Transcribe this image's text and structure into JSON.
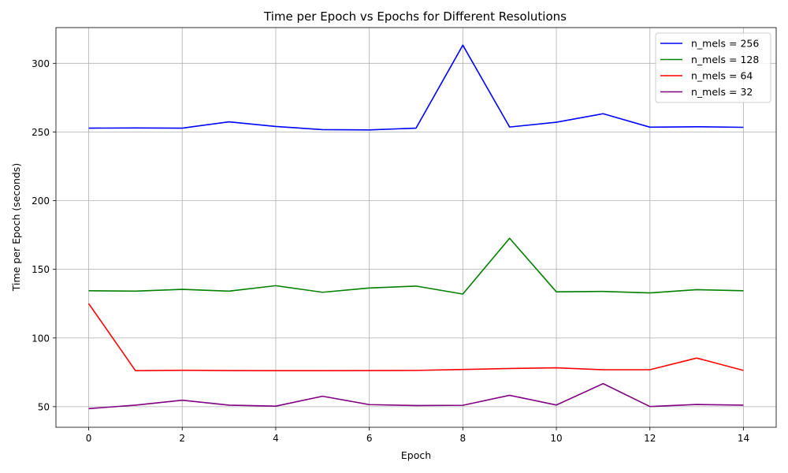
{
  "chart_data": {
    "type": "line",
    "title": "Time per Epoch vs Epochs for Different Resolutions",
    "xlabel": "Epoch",
    "ylabel": "Time per Epoch (seconds)",
    "xlim": [
      -0.7,
      14.7
    ],
    "ylim": [
      35,
      326
    ],
    "xticks": [
      0,
      2,
      4,
      6,
      8,
      10,
      12,
      14
    ],
    "yticks": [
      50,
      100,
      150,
      200,
      250,
      300
    ],
    "grid": true,
    "legend_position": "top-right",
    "x": [
      0,
      1,
      2,
      3,
      4,
      5,
      6,
      7,
      8,
      9,
      10,
      11,
      12,
      13,
      14
    ],
    "series": [
      {
        "name": "n_mels = 256",
        "color": "#0000ff",
        "values": [
          252.8,
          252.9,
          252.8,
          257.4,
          254.0,
          251.7,
          251.5,
          252.8,
          313.2,
          253.6,
          257.1,
          263.3,
          253.5,
          253.8,
          253.4
        ]
      },
      {
        "name": "n_mels = 128",
        "color": "#008000",
        "values": [
          134.4,
          134.1,
          135.4,
          134.1,
          138.1,
          133.3,
          136.4,
          137.8,
          132.0,
          172.6,
          133.6,
          133.9,
          132.8,
          135.2,
          134.4
        ]
      },
      {
        "name": "n_mels = 64",
        "color": "#ff0000",
        "values": [
          125.1,
          76.2,
          76.5,
          76.3,
          76.2,
          76.2,
          76.3,
          76.4,
          77.1,
          77.8,
          78.3,
          76.9,
          76.9,
          85.4,
          76.4
        ]
      },
      {
        "name": "n_mels = 32",
        "color": "#800080",
        "values": [
          48.6,
          51.1,
          54.7,
          51.1,
          50.4,
          57.6,
          51.5,
          50.8,
          51.0,
          58.3,
          51.2,
          66.8,
          50.1,
          51.6,
          51.1
        ]
      }
    ]
  }
}
